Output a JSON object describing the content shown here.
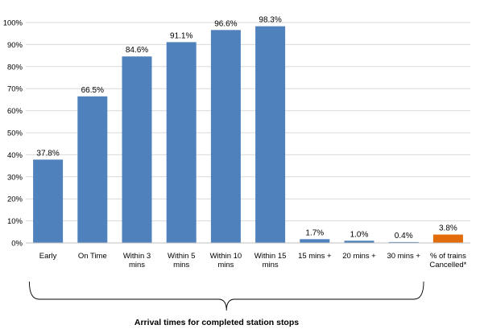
{
  "chart_data": {
    "type": "bar",
    "categories": [
      "Early",
      "On Time",
      "Within 3 mins",
      "Within 5 mins",
      "Within 10 mins",
      "Within 15 mins",
      "15 mins +",
      "20 mins +",
      "30 mins +",
      "% of trains Cancelled*"
    ],
    "values": [
      37.8,
      66.5,
      84.6,
      91.1,
      96.6,
      98.3,
      1.7,
      1.0,
      0.4,
      3.8
    ],
    "data_labels": [
      "37.8%",
      "66.5%",
      "84.6%",
      "91.1%",
      "96.6%",
      "98.3%",
      "1.7%",
      "1.0%",
      "0.4%",
      "3.8%"
    ],
    "bar_colors": [
      "#4F81BD",
      "#4F81BD",
      "#4F81BD",
      "#4F81BD",
      "#4F81BD",
      "#4F81BD",
      "#4F81BD",
      "#4F81BD",
      "#4F81BD",
      "#E36C0A"
    ],
    "category_lines": [
      [
        "Early"
      ],
      [
        "On Time"
      ],
      [
        "Within 3",
        "mins"
      ],
      [
        "Within 5",
        "mins"
      ],
      [
        "Within 10",
        "mins"
      ],
      [
        "Within 15",
        "mins"
      ],
      [
        "15 mins +"
      ],
      [
        "20 mins +"
      ],
      [
        "30 mins +"
      ],
      [
        "% of trains",
        "Cancelled*"
      ]
    ],
    "y_ticks": [
      0,
      10,
      20,
      30,
      40,
      50,
      60,
      70,
      80,
      90,
      100
    ],
    "y_tick_labels": [
      "0%",
      "10%",
      "20%",
      "30%",
      "40%",
      "50%",
      "60%",
      "70%",
      "80%",
      "90%",
      "100%"
    ],
    "ylim": [
      0,
      100
    ],
    "xlabel": "Arrival times for completed station stops",
    "ylabel": "",
    "title": "",
    "grid": true,
    "legend": "none",
    "brace_under_categories": [
      "Early",
      "30 mins +"
    ]
  }
}
